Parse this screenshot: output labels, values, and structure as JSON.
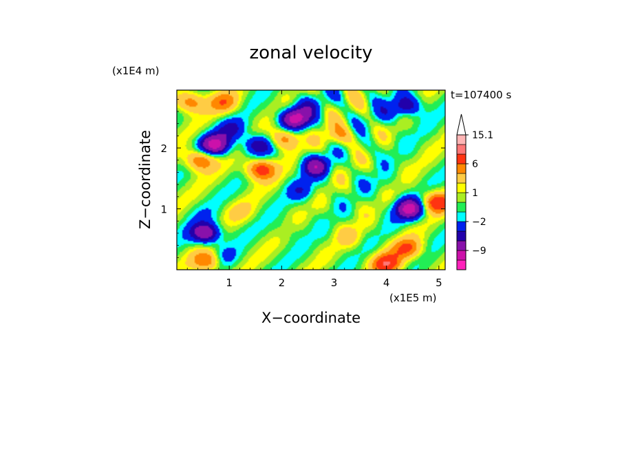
{
  "chart_data": {
    "type": "heatmap",
    "title": "zonal velocity",
    "xlabel": "X−coordinate",
    "ylabel": "Z−coordinate",
    "x_unit": "(x1E5 m)",
    "y_unit": "(x1E4 m)",
    "time_label": "t=107400 s",
    "xlim": [
      0,
      5.12
    ],
    "ylim": [
      0,
      2.95
    ],
    "x_ticks": [
      1,
      2,
      3,
      4,
      5
    ],
    "x_tick_labels": [
      "1",
      "2",
      "3",
      "4",
      "5"
    ],
    "y_ticks": [
      1,
      2
    ],
    "y_tick_labels": [
      "1",
      "2"
    ],
    "grid": false,
    "legend": "right colorbar",
    "colorbar": {
      "levels": [
        -15,
        -12,
        -9,
        -6,
        -4,
        -2,
        -1,
        0,
        1,
        2,
        4,
        6,
        9,
        12,
        15.1
      ],
      "colors": [
        "#ff22bb",
        "#cc11aa",
        "#8811aa",
        "#2200aa",
        "#0022ee",
        "#00ffff",
        "#22ee55",
        "#aaee22",
        "#ffff00",
        "#ffcc44",
        "#ff8800",
        "#ff3311",
        "#ff7777",
        "#ffb5b5"
      ],
      "overflow_color": "#ffffff",
      "labels": [
        {
          "value": -9,
          "text": "−9"
        },
        {
          "value": -2,
          "text": "−2"
        },
        {
          "value": 1,
          "text": "1"
        },
        {
          "value": 6,
          "text": "6"
        },
        {
          "value": 15.1,
          "text": "15.1"
        }
      ]
    },
    "field_features": [
      {
        "x": 2.25,
        "z": 2.48,
        "value": -10
      },
      {
        "x": 0.72,
        "z": 2.05,
        "value": -10
      },
      {
        "x": 1.05,
        "z": 2.3,
        "value": -4
      },
      {
        "x": 1.55,
        "z": 2.05,
        "value": -6
      },
      {
        "x": 2.65,
        "z": 1.7,
        "value": -7
      },
      {
        "x": 2.5,
        "z": 2.7,
        "value": -3
      },
      {
        "x": 2.4,
        "z": 1.3,
        "value": -3
      },
      {
        "x": 4.45,
        "z": 1.0,
        "value": -10
      },
      {
        "x": 0.55,
        "z": 0.6,
        "value": -9
      },
      {
        "x": 4.4,
        "z": 2.7,
        "value": -6
      },
      {
        "x": 0.85,
        "z": 0.2,
        "value": -3
      },
      {
        "x": 1.6,
        "z": 1.65,
        "value": 8
      },
      {
        "x": 0.45,
        "z": 1.8,
        "value": 7
      },
      {
        "x": 0.25,
        "z": 2.75,
        "value": 6
      },
      {
        "x": 0.9,
        "z": 2.75,
        "value": 5
      },
      {
        "x": 2.05,
        "z": 2.15,
        "value": 6
      },
      {
        "x": 4.0,
        "z": 0.1,
        "value": 8
      },
      {
        "x": 4.4,
        "z": 0.35,
        "value": 6
      },
      {
        "x": 4.95,
        "z": 1.1,
        "value": 8
      },
      {
        "x": 0.6,
        "z": 0.15,
        "value": 7
      },
      {
        "x": 4.05,
        "z": 2.55,
        "value": -2
      },
      {
        "x": 3.7,
        "z": 2.0,
        "value": -1
      },
      {
        "x": 1.2,
        "z": 0.95,
        "value": 2
      },
      {
        "x": 3.3,
        "z": 0.55,
        "value": 2
      },
      {
        "x": 2.1,
        "z": 0.65,
        "value": -1
      },
      {
        "x": 3.9,
        "z": 1.4,
        "value": -1
      },
      {
        "x": 0.5,
        "z": 0.9,
        "value": -1
      },
      {
        "x": 3.1,
        "z": 2.2,
        "value": 4
      }
    ]
  }
}
